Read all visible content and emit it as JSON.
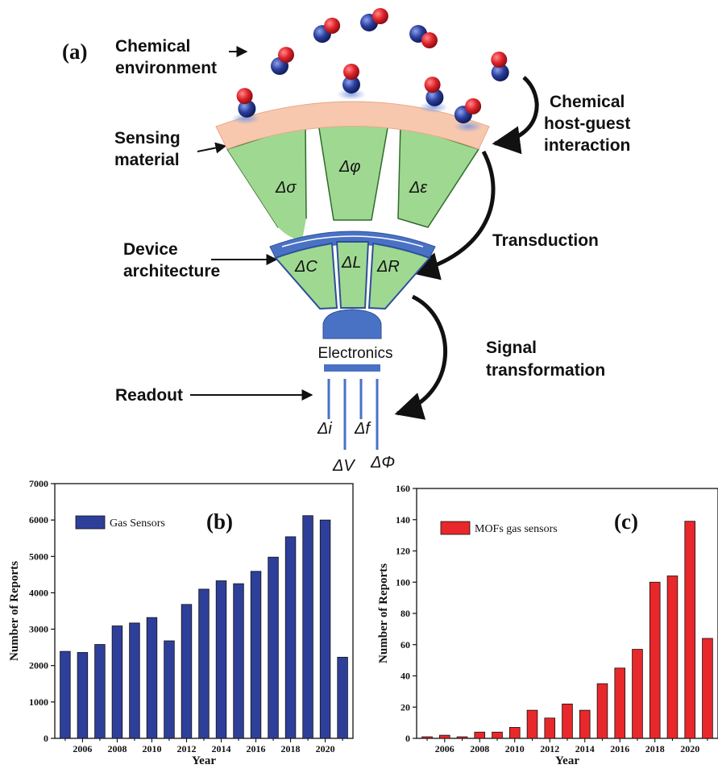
{
  "diagram": {
    "panel_label": "(a)",
    "labels": {
      "chemical_environment": [
        "Chemical",
        "environment"
      ],
      "sensing_material": [
        "Sensing",
        "material"
      ],
      "device_architecture": [
        "Device",
        "architecture"
      ],
      "readout": "Readout",
      "host_guest": [
        "Chemical",
        "host-guest",
        "interaction"
      ],
      "transduction": "Transduction",
      "signal_transformation": [
        "Signal",
        "transformation"
      ]
    },
    "material_properties": [
      "Δσ",
      "Δφ",
      "Δε"
    ],
    "device_properties": [
      "ΔC",
      "ΔL",
      "ΔR"
    ],
    "electronics_label": "Electronics",
    "readout_signals": [
      "Δi",
      "Δf",
      "ΔV",
      "ΔΦ"
    ],
    "colors": {
      "sensing_layer": "#f8c8ae",
      "segment": "#9fd891",
      "architecture": "#4a72c4",
      "molecule_red": "#e0242c",
      "molecule_blue": "#2b3f9c"
    }
  },
  "chart_data": [
    {
      "type": "bar",
      "panel_label": "(b)",
      "legend": "Gas Sensors",
      "color": "#2e3f9a",
      "xlabel": "Year",
      "ylabel": "Number of Reports",
      "ylim": [
        0,
        7000
      ],
      "yticks": [
        0,
        1000,
        2000,
        3000,
        4000,
        5000,
        6000,
        7000
      ],
      "xtick_labels": [
        "2006",
        "2008",
        "2010",
        "2012",
        "2014",
        "2016",
        "2018",
        "2020"
      ],
      "categories": [
        2005,
        2006,
        2007,
        2008,
        2009,
        2010,
        2011,
        2012,
        2013,
        2014,
        2015,
        2016,
        2017,
        2018,
        2019,
        2020,
        2021
      ],
      "values": [
        2390,
        2360,
        2580,
        3090,
        3170,
        3320,
        2680,
        3680,
        4100,
        4330,
        4250,
        4590,
        4980,
        5540,
        6120,
        6000,
        2230
      ]
    },
    {
      "type": "bar",
      "panel_label": "(c)",
      "legend": "MOFs gas sensors",
      "color": "#e8282b",
      "xlabel": "Year",
      "ylabel": "Number of Reports",
      "ylim": [
        0,
        160
      ],
      "yticks": [
        0,
        20,
        40,
        60,
        80,
        100,
        120,
        140,
        160
      ],
      "xtick_labels": [
        "2006",
        "2008",
        "2010",
        "2012",
        "2014",
        "2016",
        "2018",
        "2020"
      ],
      "categories": [
        2005,
        2006,
        2007,
        2008,
        2009,
        2010,
        2011,
        2012,
        2013,
        2014,
        2015,
        2016,
        2017,
        2018,
        2019,
        2020,
        2021
      ],
      "values": [
        1,
        2,
        1,
        4,
        4,
        7,
        18,
        13,
        22,
        18,
        35,
        45,
        57,
        100,
        104,
        139,
        64
      ]
    }
  ]
}
